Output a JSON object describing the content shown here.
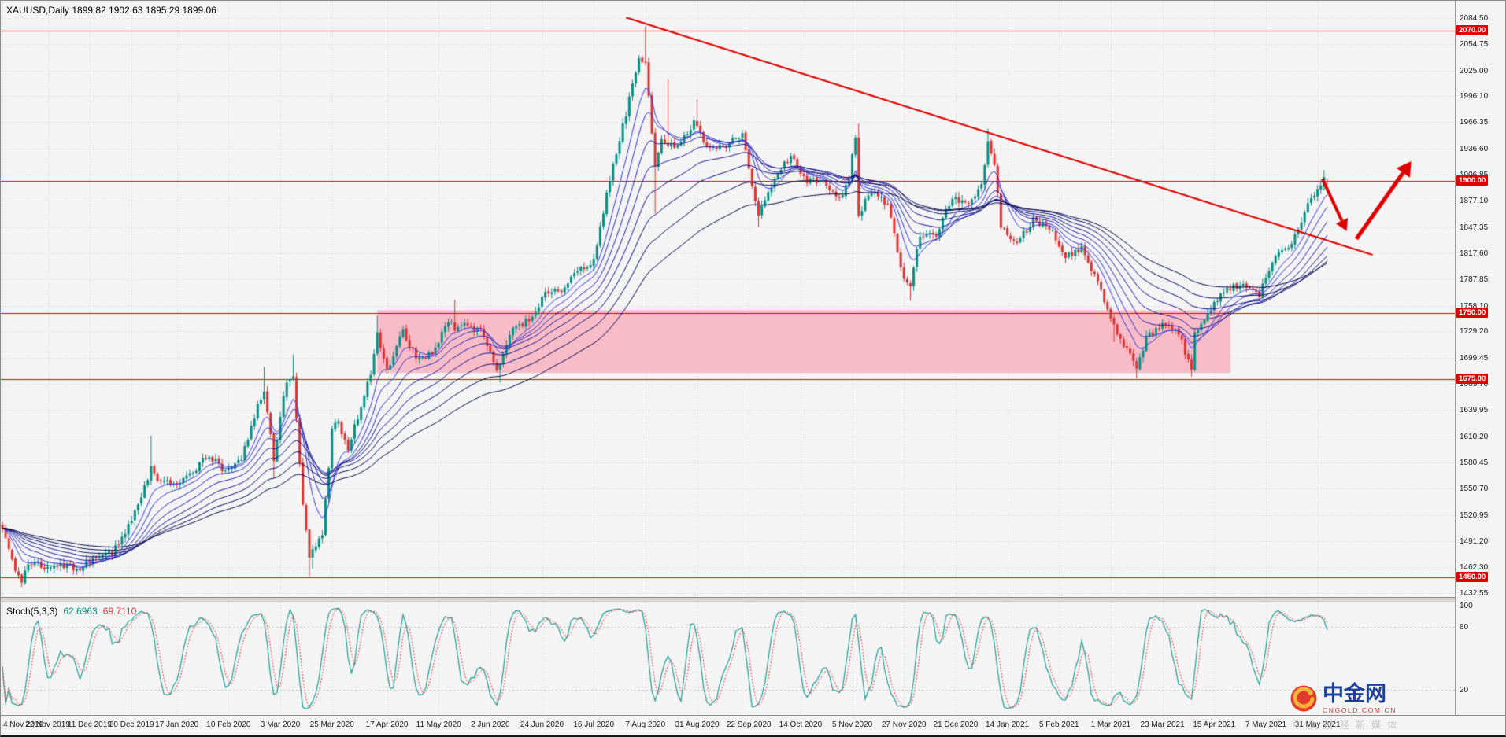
{
  "header": {
    "symbol_title": "XAUUSD,Daily 1899.82 1902.63 1895.29 1899.06"
  },
  "stoch_panel": {
    "name": "Stoch(5,3,3)",
    "k_value": "62.6963",
    "d_value": "69.7110"
  },
  "watermark": {
    "brand": "中金网",
    "domain": "CNGOLD.COM.CN",
    "tagline": "中文财经新媒体",
    "brand_color": "#21409a",
    "domain_color": "#c43a2f"
  },
  "chart_data": {
    "type": "candlestick",
    "symbol": "XAUUSD",
    "timeframe": "Daily",
    "title": "XAUUSD,Daily 1899.82 1902.63 1895.29 1899.06",
    "last_bar": {
      "open": 1899.82,
      "high": 1902.63,
      "low": 1895.29,
      "close": 1899.06
    },
    "num_bars": 411,
    "price_axis": {
      "top_price": 2104.0,
      "bottom_price": 1428.0,
      "ticks": [
        {
          "label": "2084.50",
          "value": 2084.5
        },
        {
          "label": "2054.75",
          "value": 2054.75
        },
        {
          "label": "2025.00",
          "value": 2025.0
        },
        {
          "label": "1996.10",
          "value": 1996.1
        },
        {
          "label": "1966.35",
          "value": 1966.35
        },
        {
          "label": "1936.60",
          "value": 1936.6
        },
        {
          "label": "1906.85",
          "value": 1906.85
        },
        {
          "label": "1877.10",
          "value": 1877.1
        },
        {
          "label": "1847.35",
          "value": 1847.35
        },
        {
          "label": "1817.60",
          "value": 1817.6
        },
        {
          "label": "1787.85",
          "value": 1787.85
        },
        {
          "label": "1758.10",
          "value": 1758.1
        },
        {
          "label": "1729.20",
          "value": 1729.2
        },
        {
          "label": "1699.45",
          "value": 1699.45
        },
        {
          "label": "1669.70",
          "value": 1669.7
        },
        {
          "label": "1639.95",
          "value": 1639.95
        },
        {
          "label": "1610.20",
          "value": 1610.2
        },
        {
          "label": "1580.45",
          "value": 1580.45
        },
        {
          "label": "1550.70",
          "value": 1550.7
        },
        {
          "label": "1520.95",
          "value": 1520.95
        },
        {
          "label": "1491.20",
          "value": 1491.2
        },
        {
          "label": "1462.30",
          "value": 1462.3
        },
        {
          "label": "1432.55",
          "value": 1432.55
        }
      ]
    },
    "x_labels": [
      {
        "bar": 0,
        "label": "4 Nov 2019"
      },
      {
        "bar": 14,
        "label": "22 Nov 2019"
      },
      {
        "bar": 27,
        "label": "11 Dec 2019"
      },
      {
        "bar": 40,
        "label": "30 Dec 2019"
      },
      {
        "bar": 54,
        "label": "17 Jan 2020"
      },
      {
        "bar": 70,
        "label": "10 Feb 2020"
      },
      {
        "bar": 86,
        "label": "3 Mar 2020"
      },
      {
        "bar": 102,
        "label": "25 Mar 2020"
      },
      {
        "bar": 119,
        "label": "17 Apr 2020"
      },
      {
        "bar": 135,
        "label": "11 May 2020"
      },
      {
        "bar": 151,
        "label": "2 Jun 2020"
      },
      {
        "bar": 167,
        "label": "24 Jun 2020"
      },
      {
        "bar": 183,
        "label": "16 Jul 2020"
      },
      {
        "bar": 199,
        "label": "7 Aug 2020"
      },
      {
        "bar": 215,
        "label": "31 Aug 2020"
      },
      {
        "bar": 231,
        "label": "22 Sep 2020"
      },
      {
        "bar": 247,
        "label": "14 Oct 2020"
      },
      {
        "bar": 263,
        "label": "5 Nov 2020"
      },
      {
        "bar": 279,
        "label": "27 Nov 2020"
      },
      {
        "bar": 295,
        "label": "21 Dec 2020"
      },
      {
        "bar": 311,
        "label": "14 Jan 2021"
      },
      {
        "bar": 327,
        "label": "5 Feb 2021"
      },
      {
        "bar": 343,
        "label": "1 Mar 2021"
      },
      {
        "bar": 359,
        "label": "23 Mar 2021"
      },
      {
        "bar": 375,
        "label": "15 Apr 2021"
      },
      {
        "bar": 391,
        "label": "7 May 2021"
      },
      {
        "bar": 407,
        "label": "31 May 2021"
      }
    ],
    "anchors": [
      [
        0,
        1506
      ],
      [
        4,
        1459
      ],
      [
        6,
        1448
      ],
      [
        9,
        1468
      ],
      [
        14,
        1462
      ],
      [
        19,
        1464
      ],
      [
        24,
        1460
      ],
      [
        29,
        1476
      ],
      [
        34,
        1478
      ],
      [
        40,
        1515
      ],
      [
        44,
        1552
      ],
      [
        46,
        1574
      ],
      [
        48,
        1556
      ],
      [
        54,
        1557
      ],
      [
        59,
        1571
      ],
      [
        64,
        1589
      ],
      [
        69,
        1570
      ],
      [
        74,
        1584
      ],
      [
        79,
        1643
      ],
      [
        81,
        1660
      ],
      [
        84,
        1585
      ],
      [
        88,
        1674
      ],
      [
        90,
        1680
      ],
      [
        93,
        1529
      ],
      [
        95,
        1472
      ],
      [
        97,
        1488
      ],
      [
        99,
        1498
      ],
      [
        102,
        1618
      ],
      [
        104,
        1628
      ],
      [
        107,
        1591
      ],
      [
        109,
        1620
      ],
      [
        114,
        1683
      ],
      [
        116,
        1727
      ],
      [
        119,
        1685
      ],
      [
        124,
        1729
      ],
      [
        128,
        1700
      ],
      [
        133,
        1704
      ],
      [
        138,
        1743
      ],
      [
        140,
        1732
      ],
      [
        143,
        1735
      ],
      [
        148,
        1730
      ],
      [
        153,
        1685
      ],
      [
        158,
        1731
      ],
      [
        163,
        1743
      ],
      [
        168,
        1771
      ],
      [
        173,
        1776
      ],
      [
        178,
        1798
      ],
      [
        183,
        1810
      ],
      [
        188,
        1902
      ],
      [
        193,
        1976
      ],
      [
        197,
        2039
      ],
      [
        199,
        2035
      ],
      [
        202,
        1916
      ],
      [
        204,
        1945
      ],
      [
        209,
        1940
      ],
      [
        214,
        1965
      ],
      [
        219,
        1934
      ],
      [
        224,
        1941
      ],
      [
        229,
        1951
      ],
      [
        234,
        1861
      ],
      [
        239,
        1900
      ],
      [
        244,
        1930
      ],
      [
        249,
        1899
      ],
      [
        254,
        1902
      ],
      [
        259,
        1879
      ],
      [
        262,
        1903
      ],
      [
        264,
        1951
      ],
      [
        265,
        1863
      ],
      [
        269,
        1889
      ],
      [
        274,
        1871
      ],
      [
        279,
        1788
      ],
      [
        281,
        1777
      ],
      [
        284,
        1839
      ],
      [
        289,
        1840
      ],
      [
        294,
        1881
      ],
      [
        299,
        1872
      ],
      [
        303,
        1898
      ],
      [
        305,
        1943
      ],
      [
        307,
        1919
      ],
      [
        309,
        1849
      ],
      [
        314,
        1828
      ],
      [
        319,
        1856
      ],
      [
        324,
        1848
      ],
      [
        329,
        1814
      ],
      [
        334,
        1824
      ],
      [
        339,
        1784
      ],
      [
        344,
        1734
      ],
      [
        349,
        1701
      ],
      [
        351,
        1683
      ],
      [
        354,
        1722
      ],
      [
        359,
        1736
      ],
      [
        364,
        1727
      ],
      [
        368,
        1686
      ],
      [
        369,
        1729
      ],
      [
        374,
        1756
      ],
      [
        379,
        1777
      ],
      [
        384,
        1784
      ],
      [
        389,
        1772
      ],
      [
        394,
        1815
      ],
      [
        399,
        1826
      ],
      [
        404,
        1877
      ],
      [
        407,
        1890
      ],
      [
        409,
        1904
      ],
      [
        410,
        1899
      ]
    ],
    "spikes": [
      [
        6,
        1445
      ],
      [
        46,
        1611
      ],
      [
        81,
        1689
      ],
      [
        84,
        1563
      ],
      [
        90,
        1703
      ],
      [
        95,
        1451
      ],
      [
        96,
        1460
      ],
      [
        116,
        1747
      ],
      [
        140,
        1765
      ],
      [
        154,
        1671
      ],
      [
        199,
        2075
      ],
      [
        202,
        1863
      ],
      [
        206,
        2015
      ],
      [
        215,
        1992
      ],
      [
        234,
        1848
      ],
      [
        265,
        1965
      ],
      [
        281,
        1764
      ],
      [
        305,
        1959
      ],
      [
        344,
        1717
      ],
      [
        351,
        1676
      ],
      [
        368,
        1678
      ],
      [
        409,
        1912
      ]
    ],
    "ema_periods": [
      8,
      13,
      20,
      28,
      38,
      50,
      65,
      85
    ],
    "ema_colors": [
      "#3b3bde",
      "#3030c8",
      "#2626b2",
      "#1d1d9c",
      "#151586",
      "#0e0e70",
      "#08085a",
      "#040444"
    ],
    "hlines": [
      {
        "price": 2070.0,
        "label": "2070.00"
      },
      {
        "price": 1900.0,
        "label": "1900.00"
      },
      {
        "price": 1750.0,
        "label": "1750.00"
      },
      {
        "price": 1675.0,
        "label": "1675.00"
      },
      {
        "price": 1450.0,
        "label": "1450.00"
      }
    ],
    "rect": {
      "bar_start": 116,
      "bar_end": 380,
      "price_top": 1753,
      "price_bottom": 1682,
      "color": "#f7bcc8"
    },
    "trendline": {
      "from": [
        193,
        2085
      ],
      "to": [
        424,
        1816
      ]
    },
    "arrows": [
      {
        "from": [
          408.5,
          1902
        ],
        "to": [
          416,
          1843
        ],
        "width": 4
      },
      {
        "from": [
          419,
          1834
        ],
        "to": [
          436,
          1922
        ],
        "width": 5
      }
    ],
    "stoch": {
      "k_period": 5,
      "slowing": 3,
      "d_period": 3,
      "levels": [
        80,
        20
      ],
      "axis_labels": [
        {
          "label": "100",
          "value": 100
        },
        {
          "label": "80",
          "value": 80
        },
        {
          "label": "20",
          "value": 20
        }
      ],
      "k_color": "#1f9e93",
      "d_color": "#d93a3a",
      "level_color": "#bdbdbd"
    },
    "colors": {
      "bg": "#f4f4f5",
      "grid": "#d8d8da",
      "up": "#0a8f84",
      "down": "#dd3333",
      "hline": "#e10000",
      "object_red": "#e10000",
      "axis_text": "#1c1c1c"
    }
  }
}
